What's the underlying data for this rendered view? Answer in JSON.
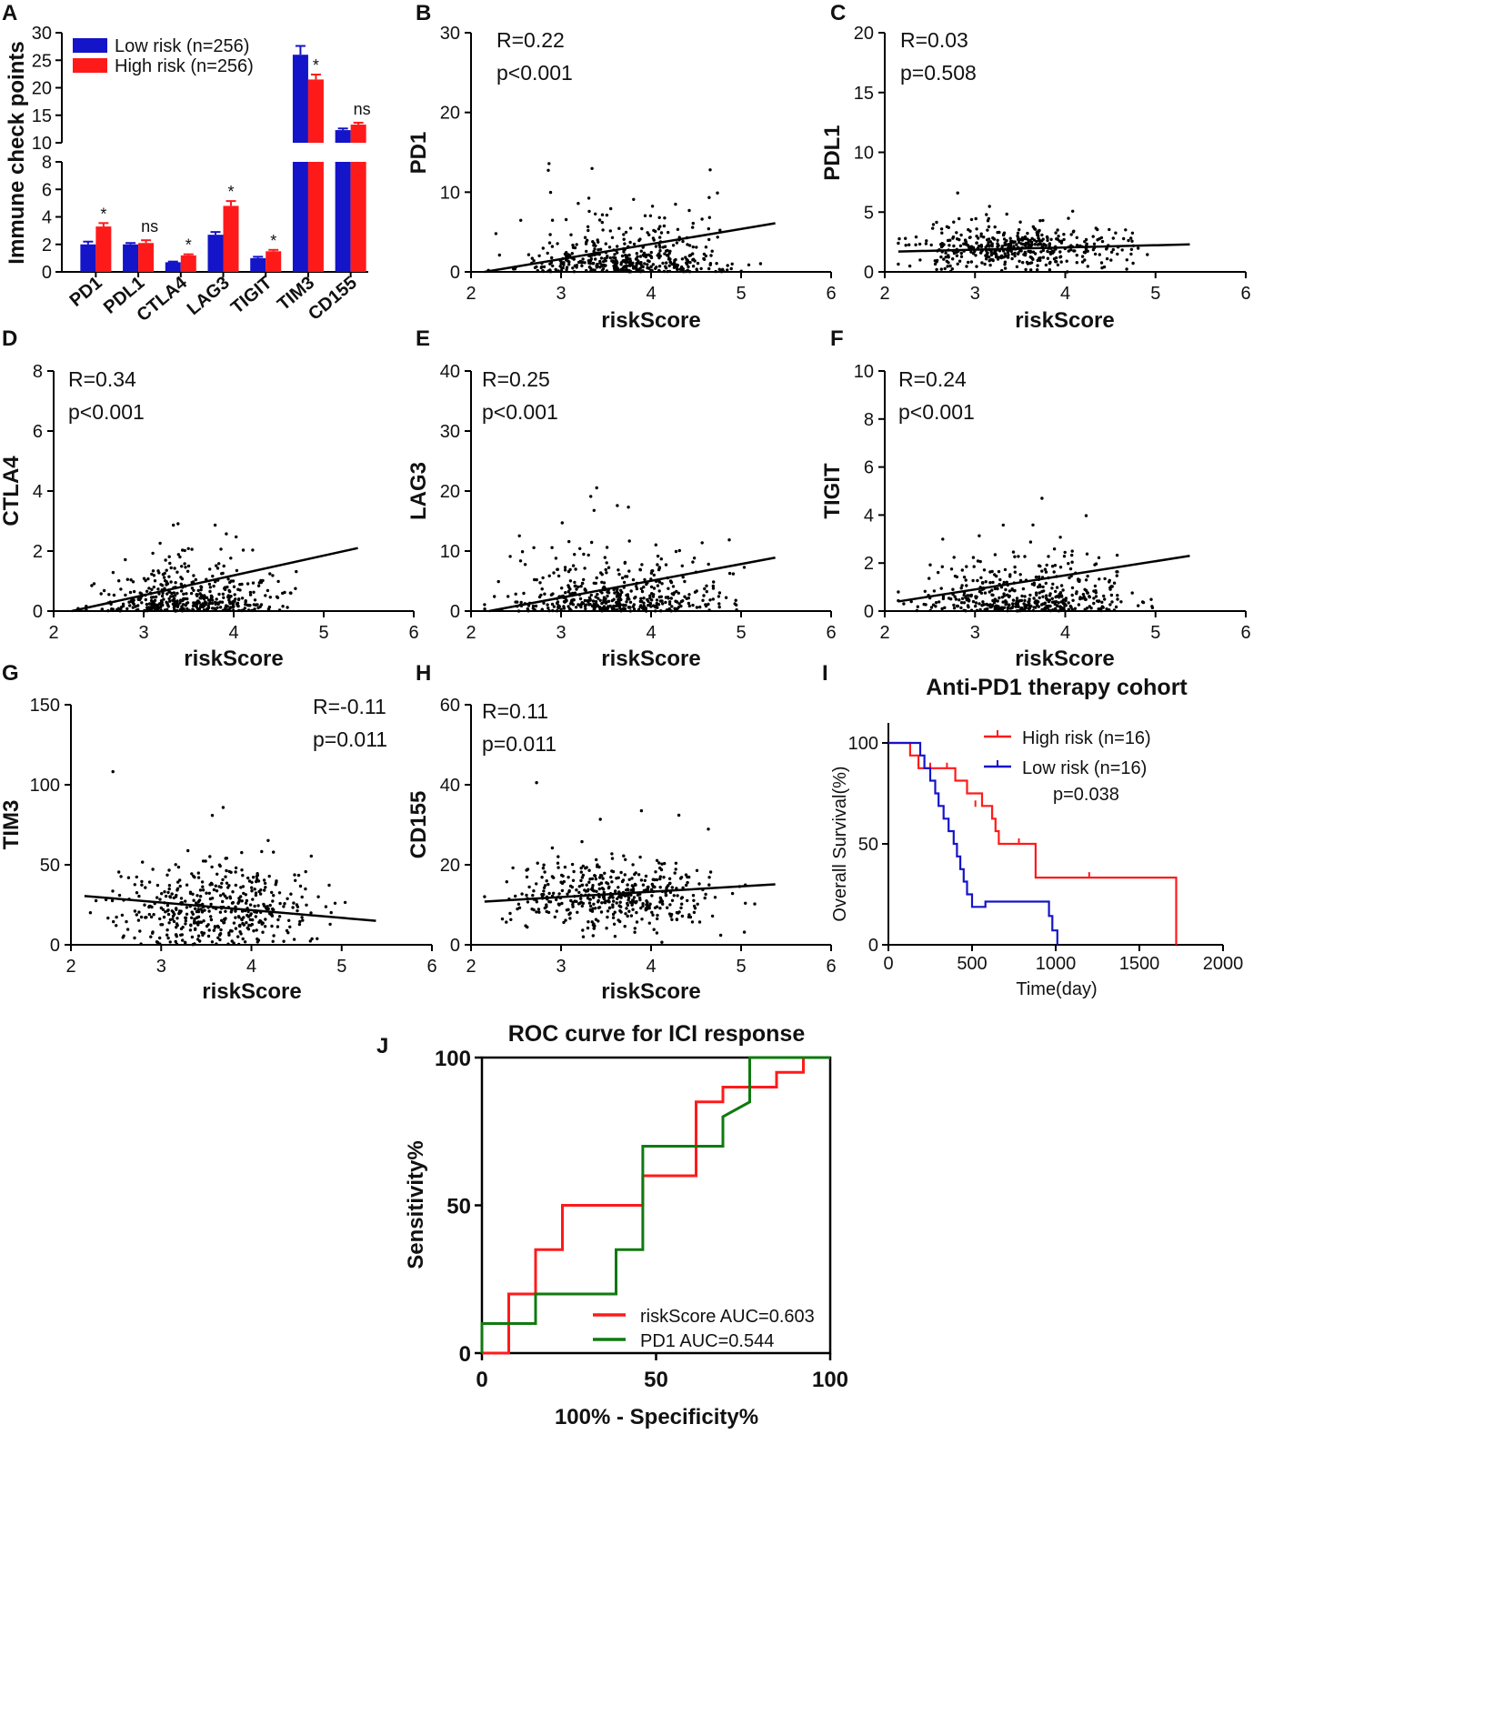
{
  "chart_data": [
    {
      "panel": "A",
      "type": "bar",
      "ylabel": "Immune check points",
      "categories": [
        "PD1",
        "PDL1",
        "CTLA4",
        "LAG3",
        "TIGIT",
        "TIM3",
        "CD155"
      ],
      "series": [
        {
          "name": "Low risk (n=256)",
          "color": "#1414c8",
          "values": [
            2.0,
            2.0,
            0.7,
            2.7,
            1.0,
            26.0,
            12.3
          ],
          "errors": [
            0.2,
            0.1,
            0.05,
            0.2,
            0.1,
            1.6,
            0.3
          ]
        },
        {
          "name": "High risk (n=256)",
          "color": "#ff1a1a",
          "values": [
            3.3,
            2.1,
            1.2,
            4.8,
            1.5,
            21.5,
            13.3
          ],
          "errors": [
            0.25,
            0.2,
            0.08,
            0.35,
            0.1,
            0.9,
            0.35
          ]
        }
      ],
      "significance": [
        "*",
        "ns",
        "*",
        "*",
        "*",
        "*",
        "ns"
      ],
      "ylim_lower": [
        0,
        8
      ],
      "ylim_upper": [
        10,
        30
      ],
      "yticks_lower": [
        "0",
        "2",
        "4",
        "6",
        "8"
      ],
      "yticks_upper": [
        "10",
        "15",
        "20",
        "25",
        "30"
      ]
    },
    {
      "panel": "B",
      "type": "scatter",
      "ylabel": "PD1",
      "xlabel": "riskScore",
      "xlim": [
        2,
        6
      ],
      "ylim": [
        0,
        30
      ],
      "xticks": [
        "2",
        "3",
        "4",
        "5",
        "6"
      ],
      "yticks": [
        "0",
        "10",
        "20",
        "30"
      ],
      "R": "R=0.22",
      "p": "p<0.001",
      "fit": [
        [
          2.15,
          -0.4
        ],
        [
          5.38,
          6.1
        ]
      ],
      "center": [
        3.7,
        2.5
      ],
      "spread": [
        0.55,
        3.0
      ],
      "n": 460,
      "seed": 11
    },
    {
      "panel": "C",
      "type": "scatter",
      "ylabel": "PDL1",
      "xlabel": "riskScore",
      "xlim": [
        2,
        6
      ],
      "ylim": [
        0,
        20
      ],
      "xticks": [
        "2",
        "3",
        "4",
        "5",
        "6"
      ],
      "yticks": [
        "0",
        "5",
        "10",
        "15",
        "20"
      ],
      "R": "R=0.03",
      "p": "p=0.508",
      "fit": [
        [
          2.15,
          1.7
        ],
        [
          5.38,
          2.3
        ]
      ],
      "center": [
        3.5,
        2.0
      ],
      "spread": [
        0.55,
        1.2
      ],
      "n": 460,
      "seed": 23
    },
    {
      "panel": "D",
      "type": "scatter",
      "ylabel": "CTLA4",
      "xlabel": "riskScore",
      "xlim": [
        2,
        6
      ],
      "ylim": [
        0,
        8
      ],
      "xticks": [
        "2",
        "3",
        "4",
        "5",
        "6"
      ],
      "yticks": [
        "0",
        "2",
        "4",
        "6",
        "8"
      ],
      "R": "R=0.34",
      "p": "p<0.001",
      "fit": [
        [
          2.2,
          -0.05
        ],
        [
          5.38,
          2.1
        ]
      ],
      "center": [
        3.5,
        0.8
      ],
      "spread": [
        0.5,
        0.9
      ],
      "n": 460,
      "seed": 37
    },
    {
      "panel": "E",
      "type": "scatter",
      "ylabel": "LAG3",
      "xlabel": "riskScore",
      "xlim": [
        2,
        6
      ],
      "ylim": [
        0,
        40
      ],
      "xticks": [
        "2",
        "3",
        "4",
        "5",
        "6"
      ],
      "yticks": [
        "0",
        "10",
        "20",
        "30",
        "40"
      ],
      "R": "R=0.25",
      "p": "p<0.001",
      "fit": [
        [
          2.2,
          -0.2
        ],
        [
          5.38,
          8.9
        ]
      ],
      "center": [
        3.6,
        3.5
      ],
      "spread": [
        0.55,
        4.5
      ],
      "n": 460,
      "seed": 41
    },
    {
      "panel": "F",
      "type": "scatter",
      "ylabel": "TIGIT",
      "xlabel": "riskScore",
      "xlim": [
        2,
        6
      ],
      "ylim": [
        0,
        10
      ],
      "xticks": [
        "2",
        "3",
        "4",
        "5",
        "6"
      ],
      "yticks": [
        "0",
        "2",
        "4",
        "6",
        "8",
        "10"
      ],
      "R": "R=0.24",
      "p": "p<0.001",
      "fit": [
        [
          2.15,
          0.4
        ],
        [
          5.38,
          2.3
        ]
      ],
      "center": [
        3.6,
        1.2
      ],
      "spread": [
        0.55,
        1.2
      ],
      "n": 460,
      "seed": 53
    },
    {
      "panel": "G",
      "type": "scatter",
      "ylabel": "TIM3",
      "xlabel": "riskScore",
      "xlim": [
        2,
        6
      ],
      "ylim": [
        0,
        150
      ],
      "xticks": [
        "2",
        "3",
        "4",
        "5",
        "6"
      ],
      "yticks": [
        "0",
        "50",
        "100",
        "150"
      ],
      "R": "R=-0.11",
      "p": "p=0.011",
      "fit": [
        [
          2.15,
          30.5
        ],
        [
          5.38,
          15.0
        ]
      ],
      "center": [
        3.6,
        22
      ],
      "spread": [
        0.55,
        18
      ],
      "n": 460,
      "seed": 67
    },
    {
      "panel": "H",
      "type": "scatter",
      "ylabel": "CD155",
      "xlabel": "riskScore",
      "xlim": [
        2,
        6
      ],
      "ylim": [
        0,
        60
      ],
      "xticks": [
        "2",
        "3",
        "4",
        "5",
        "6"
      ],
      "yticks": [
        "0",
        "20",
        "40",
        "60"
      ],
      "R": "R=0.11",
      "p": "p=0.011",
      "fit": [
        [
          2.15,
          10.8
        ],
        [
          5.38,
          15.1
        ]
      ],
      "center": [
        3.6,
        12
      ],
      "spread": [
        0.55,
        5.5
      ],
      "n": 460,
      "seed": 79
    },
    {
      "panel": "I",
      "type": "line",
      "title": "Anti-PD1 therapy cohort",
      "xlabel": "Time(day)",
      "ylabel": "Overall Survival(%)",
      "xlim": [
        0,
        2000
      ],
      "ylim": [
        0,
        100
      ],
      "xticks": [
        "0",
        "500",
        "1000",
        "1500",
        "2000"
      ],
      "yticks": [
        "0",
        "50",
        "100"
      ],
      "p": "p=0.038",
      "series": [
        {
          "name": "High risk (n=16)",
          "color": "#ff1a1a",
          "steps": [
            [
              0,
              100
            ],
            [
              130,
              93.8
            ],
            [
              180,
              87.5
            ],
            [
              320,
              87.5
            ],
            [
              400,
              81.3
            ],
            [
              470,
              75
            ],
            [
              560,
              68.8
            ],
            [
              620,
              62.5
            ],
            [
              640,
              56.3
            ],
            [
              660,
              50
            ],
            [
              850,
              50
            ],
            [
              880,
              33.3
            ],
            [
              1720,
              33.3
            ],
            [
              1720,
              0
            ]
          ],
          "censor": [
            [
              250,
              87.5
            ],
            [
              350,
              87.5
            ],
            [
              520,
              68.8
            ],
            [
              780,
              50
            ],
            [
              1200,
              33.3
            ]
          ]
        },
        {
          "name": "Low risk (n=16)",
          "color": "#1414c8",
          "steps": [
            [
              0,
              100
            ],
            [
              180,
              100
            ],
            [
              190,
              93.8
            ],
            [
              215,
              87.5
            ],
            [
              250,
              81.3
            ],
            [
              280,
              75
            ],
            [
              300,
              68.8
            ],
            [
              330,
              62.5
            ],
            [
              360,
              56.3
            ],
            [
              390,
              50
            ],
            [
              410,
              43.8
            ],
            [
              430,
              37.5
            ],
            [
              450,
              31.3
            ],
            [
              470,
              25
            ],
            [
              500,
              18.8
            ],
            [
              580,
              21.4
            ],
            [
              960,
              21.4
            ],
            [
              960,
              14.3
            ],
            [
              980,
              7.1
            ],
            [
              1010,
              7.1
            ],
            [
              1010,
              0
            ]
          ],
          "censor": []
        }
      ]
    },
    {
      "panel": "J",
      "type": "line",
      "title": "ROC curve for ICI response",
      "xlabel": "100% - Specificity%",
      "ylabel": "Sensitivity%",
      "xlim": [
        0,
        100
      ],
      "ylim": [
        0,
        100
      ],
      "xticks": [
        "0",
        "50",
        "100"
      ],
      "yticks": [
        "0",
        "50",
        "100"
      ],
      "series": [
        {
          "name": "riskScore AUC=0.603",
          "color": "#ff1a1a",
          "steps": [
            [
              0,
              0
            ],
            [
              7.7,
              0
            ],
            [
              7.7,
              20
            ],
            [
              15.4,
              20
            ],
            [
              15.4,
              35
            ],
            [
              23.1,
              35
            ],
            [
              23.1,
              50
            ],
            [
              46.2,
              50
            ],
            [
              46.2,
              60
            ],
            [
              61.5,
              60
            ],
            [
              61.5,
              85
            ],
            [
              69.2,
              85
            ],
            [
              69.2,
              90
            ],
            [
              84.6,
              90
            ],
            [
              84.6,
              95
            ],
            [
              92.3,
              95
            ],
            [
              92.3,
              100
            ],
            [
              100,
              100
            ]
          ]
        },
        {
          "name": "PD1 AUC=0.544",
          "color": "#0f7a0f",
          "steps": [
            [
              0,
              0
            ],
            [
              0,
              10
            ],
            [
              15.4,
              10
            ],
            [
              15.4,
              20
            ],
            [
              38.5,
              20
            ],
            [
              38.5,
              35
            ],
            [
              46.2,
              35
            ],
            [
              46.2,
              70
            ],
            [
              69.2,
              70
            ],
            [
              69.2,
              80
            ],
            [
              76.9,
              85
            ],
            [
              76.9,
              100
            ],
            [
              100,
              100
            ]
          ]
        }
      ]
    }
  ]
}
